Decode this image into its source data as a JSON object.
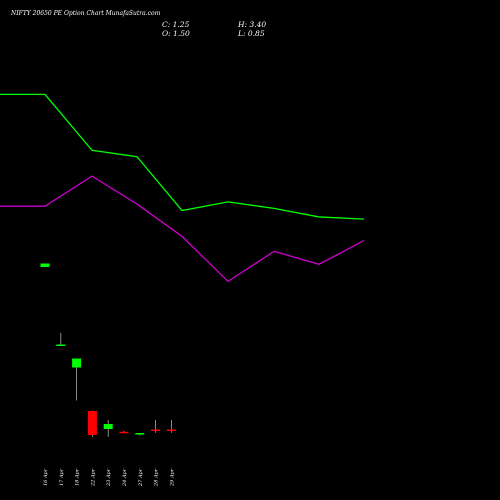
{
  "header": {
    "title": "NIFTY 20650  PE Option  Chart MunafaSutra.com",
    "close": "C: 1.25",
    "high": "H: 3.40",
    "open": "O: 1.50",
    "low": "L: 0.85"
  },
  "colors": {
    "background": "#000000",
    "up": "#00ff00",
    "down": "#ff0000",
    "ma_short": "#00ff00",
    "ma_long": "#cc00cc"
  },
  "chart_data": {
    "type": "candlestick",
    "title": "NIFTY 20650  PE Option  Chart MunafaSutra.com",
    "grid": false,
    "categories": [
      "16 Apr",
      "17 Apr",
      "18 Apr",
      "22 Apr",
      "23 Apr",
      "24 Apr",
      "27 Apr",
      "28 Apr",
      "29 Apr"
    ],
    "candles": [
      {
        "date": "16 Apr",
        "open": 34.0,
        "high": 34.7,
        "low": 34.0,
        "close": 34.7
      },
      {
        "date": "17 Apr",
        "open": 18.5,
        "high": 20.8,
        "low": 18.2,
        "close": 18.5
      },
      {
        "date": "18 Apr",
        "open": 13.9,
        "high": 15.7,
        "low": 7.3,
        "close": 15.7
      },
      {
        "date": "22 Apr",
        "open": 5.2,
        "high": 5.3,
        "low": 0.0,
        "close": 0.4
      },
      {
        "date": "23 Apr",
        "open": 1.6,
        "high": 3.4,
        "low": 0.0,
        "close": 2.6
      },
      {
        "date": "24 Apr",
        "open": 1.05,
        "high": 1.2,
        "low": 0.8,
        "close": 1.0
      },
      {
        "date": "27 Apr",
        "open": 0.6,
        "high": 0.7,
        "low": 0.3,
        "close": 0.8
      },
      {
        "date": "28 Apr",
        "open": 1.5,
        "high": 3.4,
        "low": 0.85,
        "close": 1.25
      },
      {
        "date": "29 Apr",
        "open": 1.5,
        "high": 3.4,
        "low": 0.85,
        "close": 1.25
      }
    ],
    "series": [
      {
        "values": [
          92,
          92,
          79,
          77.5,
          65,
          67,
          65.5,
          63.5,
          63
        ]
      },
      {
        "values": [
          66,
          66,
          73,
          66.5,
          59,
          48.5,
          55.5,
          52.5,
          58
        ]
      }
    ],
    "ylim": [
      0,
      100
    ]
  }
}
